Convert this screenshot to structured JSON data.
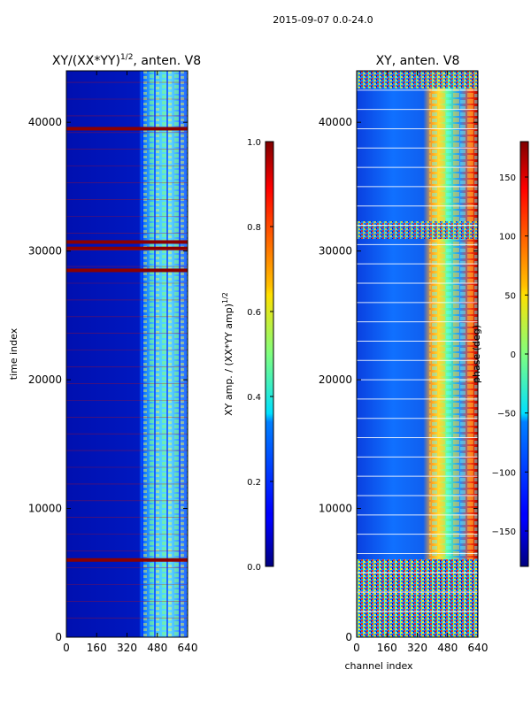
{
  "suptitle": "2015-09-07 0.0-24.0",
  "chart_data": [
    {
      "type": "heatmap",
      "title_main": "XY/(XX*YY)",
      "title_sup": "1/2",
      "title_tail": ", anten. V8",
      "xlabel": "",
      "ylabel": "time index",
      "xlim": [
        0,
        640
      ],
      "ylim": [
        0,
        44000
      ],
      "xticks": [
        0,
        160,
        320,
        480,
        640
      ],
      "yticks": [
        0,
        10000,
        20000,
        30000,
        40000
      ],
      "ytick_labels": [
        "0",
        "10000",
        "20000",
        "30000",
        "40000"
      ],
      "colorbar": {
        "label_main": "XY amp. / (XX*YY amp)",
        "label_sup": "1/2",
        "range": [
          0.0,
          1.0
        ],
        "ticks": [
          "0.0",
          "0.2",
          "0.4",
          "0.6",
          "0.8",
          "1.0"
        ],
        "tick_values": [
          0.0,
          0.2,
          0.4,
          0.6,
          0.8,
          1.0
        ]
      },
      "features": {
        "active_band_channels": [
          400,
          640
        ],
        "saturated_rows_time_index": [
          28500,
          30200,
          30700,
          6000,
          39500
        ]
      }
    },
    {
      "type": "heatmap",
      "title": "XY, anten. V8",
      "xlabel": "channel index",
      "ylabel": "",
      "xlim": [
        0,
        640
      ],
      "ylim": [
        0,
        44000
      ],
      "xticks": [
        0,
        160,
        320,
        480,
        640
      ],
      "yticks": [
        0,
        10000,
        20000,
        30000,
        40000
      ],
      "ytick_labels": [
        "0",
        "10000",
        "20000",
        "30000",
        "40000"
      ],
      "colorbar": {
        "label": "phase (deg)",
        "range": [
          -180,
          180
        ],
        "ticks": [
          "150",
          "100",
          "50",
          "0",
          "−50",
          "−100",
          "−150"
        ],
        "tick_values": [
          150,
          100,
          50,
          0,
          -50,
          -100,
          -150
        ]
      },
      "features": {
        "active_band_channels": [
          400,
          640
        ],
        "noisy_region_time_index": [
          0,
          6000
        ]
      }
    }
  ]
}
